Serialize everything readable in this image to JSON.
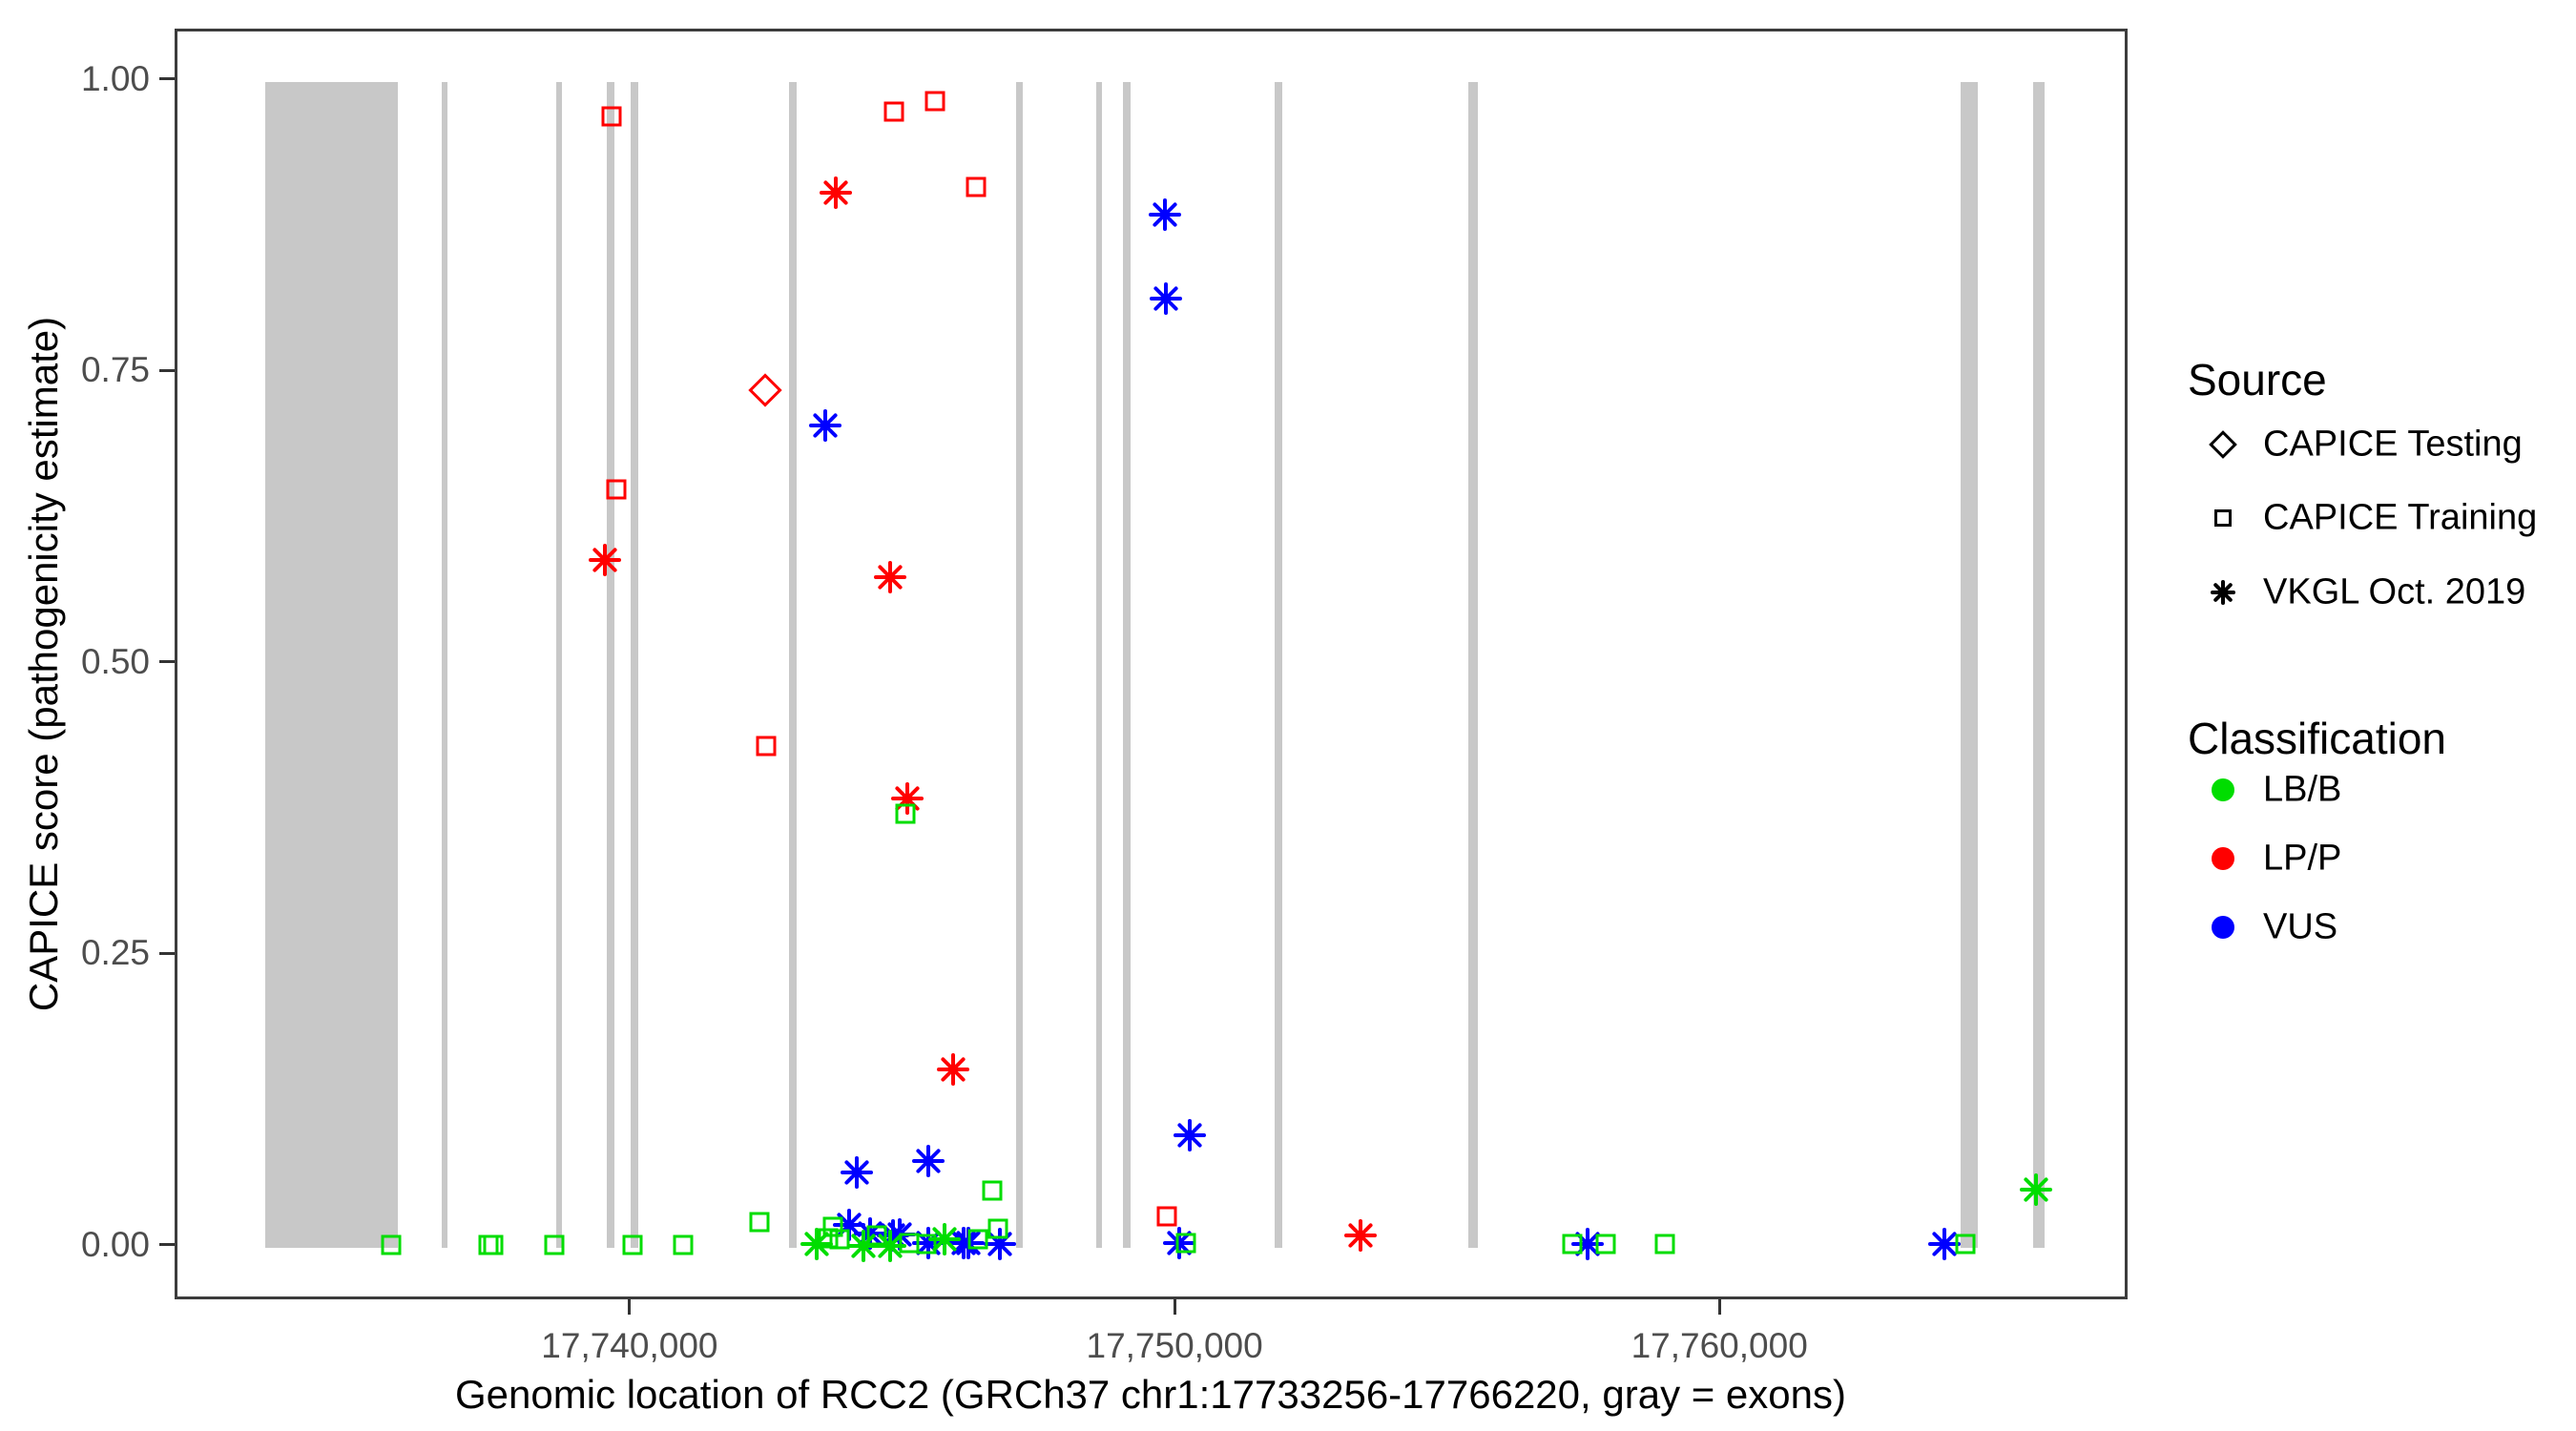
{
  "figure": {
    "x_axis_title": "Genomic location of RCC2 (GRCh37 chr1:17733256-17766220, gray = exons)",
    "y_axis_title": "CAPICE score (pathogenicity estimate)"
  },
  "legend": {
    "source": {
      "title": "Source",
      "items": [
        {
          "label": "CAPICE Testing",
          "shape": "diamond"
        },
        {
          "label": "CAPICE Training",
          "shape": "square"
        },
        {
          "label": "VKGL Oct. 2019",
          "shape": "asterisk"
        }
      ]
    },
    "classification": {
      "title": "Classification",
      "items": [
        {
          "label": "LB/B",
          "color": "#00DD00"
        },
        {
          "label": "LP/P",
          "color": "#FF0000"
        },
        {
          "label": "VUS",
          "color": "#0000FF"
        }
      ]
    }
  },
  "chart_data": {
    "type": "scatter",
    "xlabel": "Genomic location of RCC2 (GRCh37 chr1:17733256-17766220, gray = exons)",
    "ylabel": "CAPICE score (pathogenicity estimate)",
    "x_axis": {
      "domain": [
        17731650,
        17767490
      ],
      "ticks": [
        {
          "value": 17740000,
          "label": "17,740,000"
        },
        {
          "value": 17750000,
          "label": "17,750,000"
        },
        {
          "value": 17760000,
          "label": "17,760,000"
        }
      ]
    },
    "y_axis": {
      "domain": [
        -0.047,
        1.043
      ],
      "ticks": [
        {
          "value": 0.0,
          "label": "0.00"
        },
        {
          "value": 0.25,
          "label": "0.25"
        },
        {
          "value": 0.5,
          "label": "0.50"
        },
        {
          "value": 0.75,
          "label": "0.75"
        },
        {
          "value": 1.0,
          "label": "1.00"
        }
      ]
    },
    "colors": {
      "LB/B": "#00DD00",
      "LP/P": "#FF0000",
      "VUS": "#0000FF",
      "exon": "#C8C8C8"
    },
    "shapes": {
      "CAPICE Testing": "diamond",
      "CAPICE Training": "square",
      "VKGL Oct. 2019": "asterisk"
    },
    "exons_bp": [
      [
        17733260,
        17735690
      ],
      [
        17736500,
        17736590
      ],
      [
        17738600,
        17738705
      ],
      [
        17739530,
        17739670
      ],
      [
        17739965,
        17740105
      ],
      [
        17742870,
        17743010
      ],
      [
        17747040,
        17747160
      ],
      [
        17748510,
        17748615
      ],
      [
        17749000,
        17749140
      ],
      [
        17751785,
        17751925
      ],
      [
        17755340,
        17755515
      ],
      [
        17764370,
        17764685
      ],
      [
        17765700,
        17765910
      ]
    ],
    "points": [
      {
        "bp": 17739615,
        "score": 0.97,
        "classification": "LP/P",
        "source": "CAPICE Training"
      },
      {
        "bp": 17739700,
        "score": 0.65,
        "classification": "LP/P",
        "source": "CAPICE Training"
      },
      {
        "bp": 17739490,
        "score": 0.59,
        "classification": "LP/P",
        "source": "VKGL Oct. 2019"
      },
      {
        "bp": 17742430,
        "score": 0.735,
        "classification": "LP/P",
        "source": "CAPICE Testing"
      },
      {
        "bp": 17742450,
        "score": 0.43,
        "classification": "LP/P",
        "source": "CAPICE Training"
      },
      {
        "bp": 17743730,
        "score": 0.905,
        "classification": "LP/P",
        "source": "VKGL Oct. 2019"
      },
      {
        "bp": 17744730,
        "score": 0.575,
        "classification": "LP/P",
        "source": "VKGL Oct. 2019"
      },
      {
        "bp": 17744800,
        "score": 0.974,
        "classification": "LP/P",
        "source": "CAPICE Training"
      },
      {
        "bp": 17745040,
        "score": 0.385,
        "classification": "LP/P",
        "source": "VKGL Oct. 2019"
      },
      {
        "bp": 17745550,
        "score": 0.983,
        "classification": "LP/P",
        "source": "CAPICE Training"
      },
      {
        "bp": 17745890,
        "score": 0.153,
        "classification": "LP/P",
        "source": "VKGL Oct. 2019"
      },
      {
        "bp": 17746300,
        "score": 0.91,
        "classification": "LP/P",
        "source": "CAPICE Training"
      },
      {
        "bp": 17749800,
        "score": 0.027,
        "classification": "LP/P",
        "source": "CAPICE Training"
      },
      {
        "bp": 17753360,
        "score": 0.01,
        "classification": "LP/P",
        "source": "VKGL Oct. 2019"
      },
      {
        "bp": 17743540,
        "score": 0.705,
        "classification": "VUS",
        "source": "VKGL Oct. 2019"
      },
      {
        "bp": 17749770,
        "score": 0.886,
        "classification": "VUS",
        "source": "VKGL Oct. 2019"
      },
      {
        "bp": 17749790,
        "score": 0.814,
        "classification": "VUS",
        "source": "VKGL Oct. 2019"
      },
      {
        "bp": 17750220,
        "score": 0.096,
        "classification": "VUS",
        "source": "VKGL Oct. 2019"
      },
      {
        "bp": 17744110,
        "score": 0.064,
        "classification": "VUS",
        "source": "VKGL Oct. 2019"
      },
      {
        "bp": 17745430,
        "score": 0.074,
        "classification": "VUS",
        "source": "VKGL Oct. 2019"
      },
      {
        "bp": 17743980,
        "score": 0.019,
        "classification": "VUS",
        "source": "VKGL Oct. 2019"
      },
      {
        "bp": 17744360,
        "score": 0.012,
        "classification": "VUS",
        "source": "VKGL Oct. 2019"
      },
      {
        "bp": 17744780,
        "score": 0.01,
        "classification": "VUS",
        "source": "VKGL Oct. 2019"
      },
      {
        "bp": 17744900,
        "score": 0.011,
        "classification": "VUS",
        "source": "VKGL Oct. 2019"
      },
      {
        "bp": 17745430,
        "score": 0.004,
        "classification": "VUS",
        "source": "VKGL Oct. 2019"
      },
      {
        "bp": 17746080,
        "score": 0.004,
        "classification": "VUS",
        "source": "VKGL Oct. 2019"
      },
      {
        "bp": 17746160,
        "score": 0.004,
        "classification": "VUS",
        "source": "VKGL Oct. 2019"
      },
      {
        "bp": 17746740,
        "score": 0.003,
        "classification": "VUS",
        "source": "VKGL Oct. 2019"
      },
      {
        "bp": 17750030,
        "score": 0.004,
        "classification": "VUS",
        "source": "VKGL Oct. 2019"
      },
      {
        "bp": 17757530,
        "score": 0.003,
        "classification": "VUS",
        "source": "VKGL Oct. 2019"
      },
      {
        "bp": 17764070,
        "score": 0.003,
        "classification": "VUS",
        "source": "VKGL Oct. 2019"
      },
      {
        "bp": 17735570,
        "score": 0.002,
        "classification": "LB/B",
        "source": "CAPICE Training"
      },
      {
        "bp": 17737360,
        "score": 0.002,
        "classification": "LB/B",
        "source": "CAPICE Training"
      },
      {
        "bp": 17737450,
        "score": 0.002,
        "classification": "LB/B",
        "source": "CAPICE Training"
      },
      {
        "bp": 17738560,
        "score": 0.002,
        "classification": "LB/B",
        "source": "CAPICE Training"
      },
      {
        "bp": 17740000,
        "score": 0.002,
        "classification": "LB/B",
        "source": "CAPICE Training"
      },
      {
        "bp": 17740930,
        "score": 0.002,
        "classification": "LB/B",
        "source": "CAPICE Training"
      },
      {
        "bp": 17742330,
        "score": 0.022,
        "classification": "LB/B",
        "source": "CAPICE Training"
      },
      {
        "bp": 17743380,
        "score": 0.003,
        "classification": "LB/B",
        "source": "VKGL Oct. 2019"
      },
      {
        "bp": 17743590,
        "score": 0.008,
        "classification": "LB/B",
        "source": "CAPICE Training"
      },
      {
        "bp": 17743680,
        "score": 0.018,
        "classification": "LB/B",
        "source": "CAPICE Training"
      },
      {
        "bp": 17743800,
        "score": 0.007,
        "classification": "LB/B",
        "source": "CAPICE Training"
      },
      {
        "bp": 17744240,
        "score": 0.001,
        "classification": "LB/B",
        "source": "VKGL Oct. 2019"
      },
      {
        "bp": 17744480,
        "score": 0.01,
        "classification": "LB/B",
        "source": "CAPICE Training"
      },
      {
        "bp": 17744730,
        "score": 0.001,
        "classification": "LB/B",
        "source": "VKGL Oct. 2019"
      },
      {
        "bp": 17745010,
        "score": 0.372,
        "classification": "LB/B",
        "source": "CAPICE Training"
      },
      {
        "bp": 17745080,
        "score": 0.004,
        "classification": "LB/B",
        "source": "CAPICE Training"
      },
      {
        "bp": 17745390,
        "score": 0.003,
        "classification": "LB/B",
        "source": "CAPICE Training"
      },
      {
        "bp": 17745730,
        "score": 0.007,
        "classification": "LB/B",
        "source": "VKGL Oct. 2019"
      },
      {
        "bp": 17746340,
        "score": 0.007,
        "classification": "LB/B",
        "source": "CAPICE Training"
      },
      {
        "bp": 17746600,
        "score": 0.049,
        "classification": "LB/B",
        "source": "CAPICE Training"
      },
      {
        "bp": 17746710,
        "score": 0.016,
        "classification": "LB/B",
        "source": "CAPICE Training"
      },
      {
        "bp": 17750150,
        "score": 0.004,
        "classification": "LB/B",
        "source": "CAPICE Training"
      },
      {
        "bp": 17757250,
        "score": 0.003,
        "classification": "LB/B",
        "source": "CAPICE Training"
      },
      {
        "bp": 17757860,
        "score": 0.003,
        "classification": "LB/B",
        "source": "CAPICE Training"
      },
      {
        "bp": 17758940,
        "score": 0.003,
        "classification": "LB/B",
        "source": "CAPICE Training"
      },
      {
        "bp": 17764460,
        "score": 0.003,
        "classification": "LB/B",
        "source": "CAPICE Training"
      },
      {
        "bp": 17765750,
        "score": 0.05,
        "classification": "LB/B",
        "source": "VKGL Oct. 2019"
      }
    ]
  }
}
